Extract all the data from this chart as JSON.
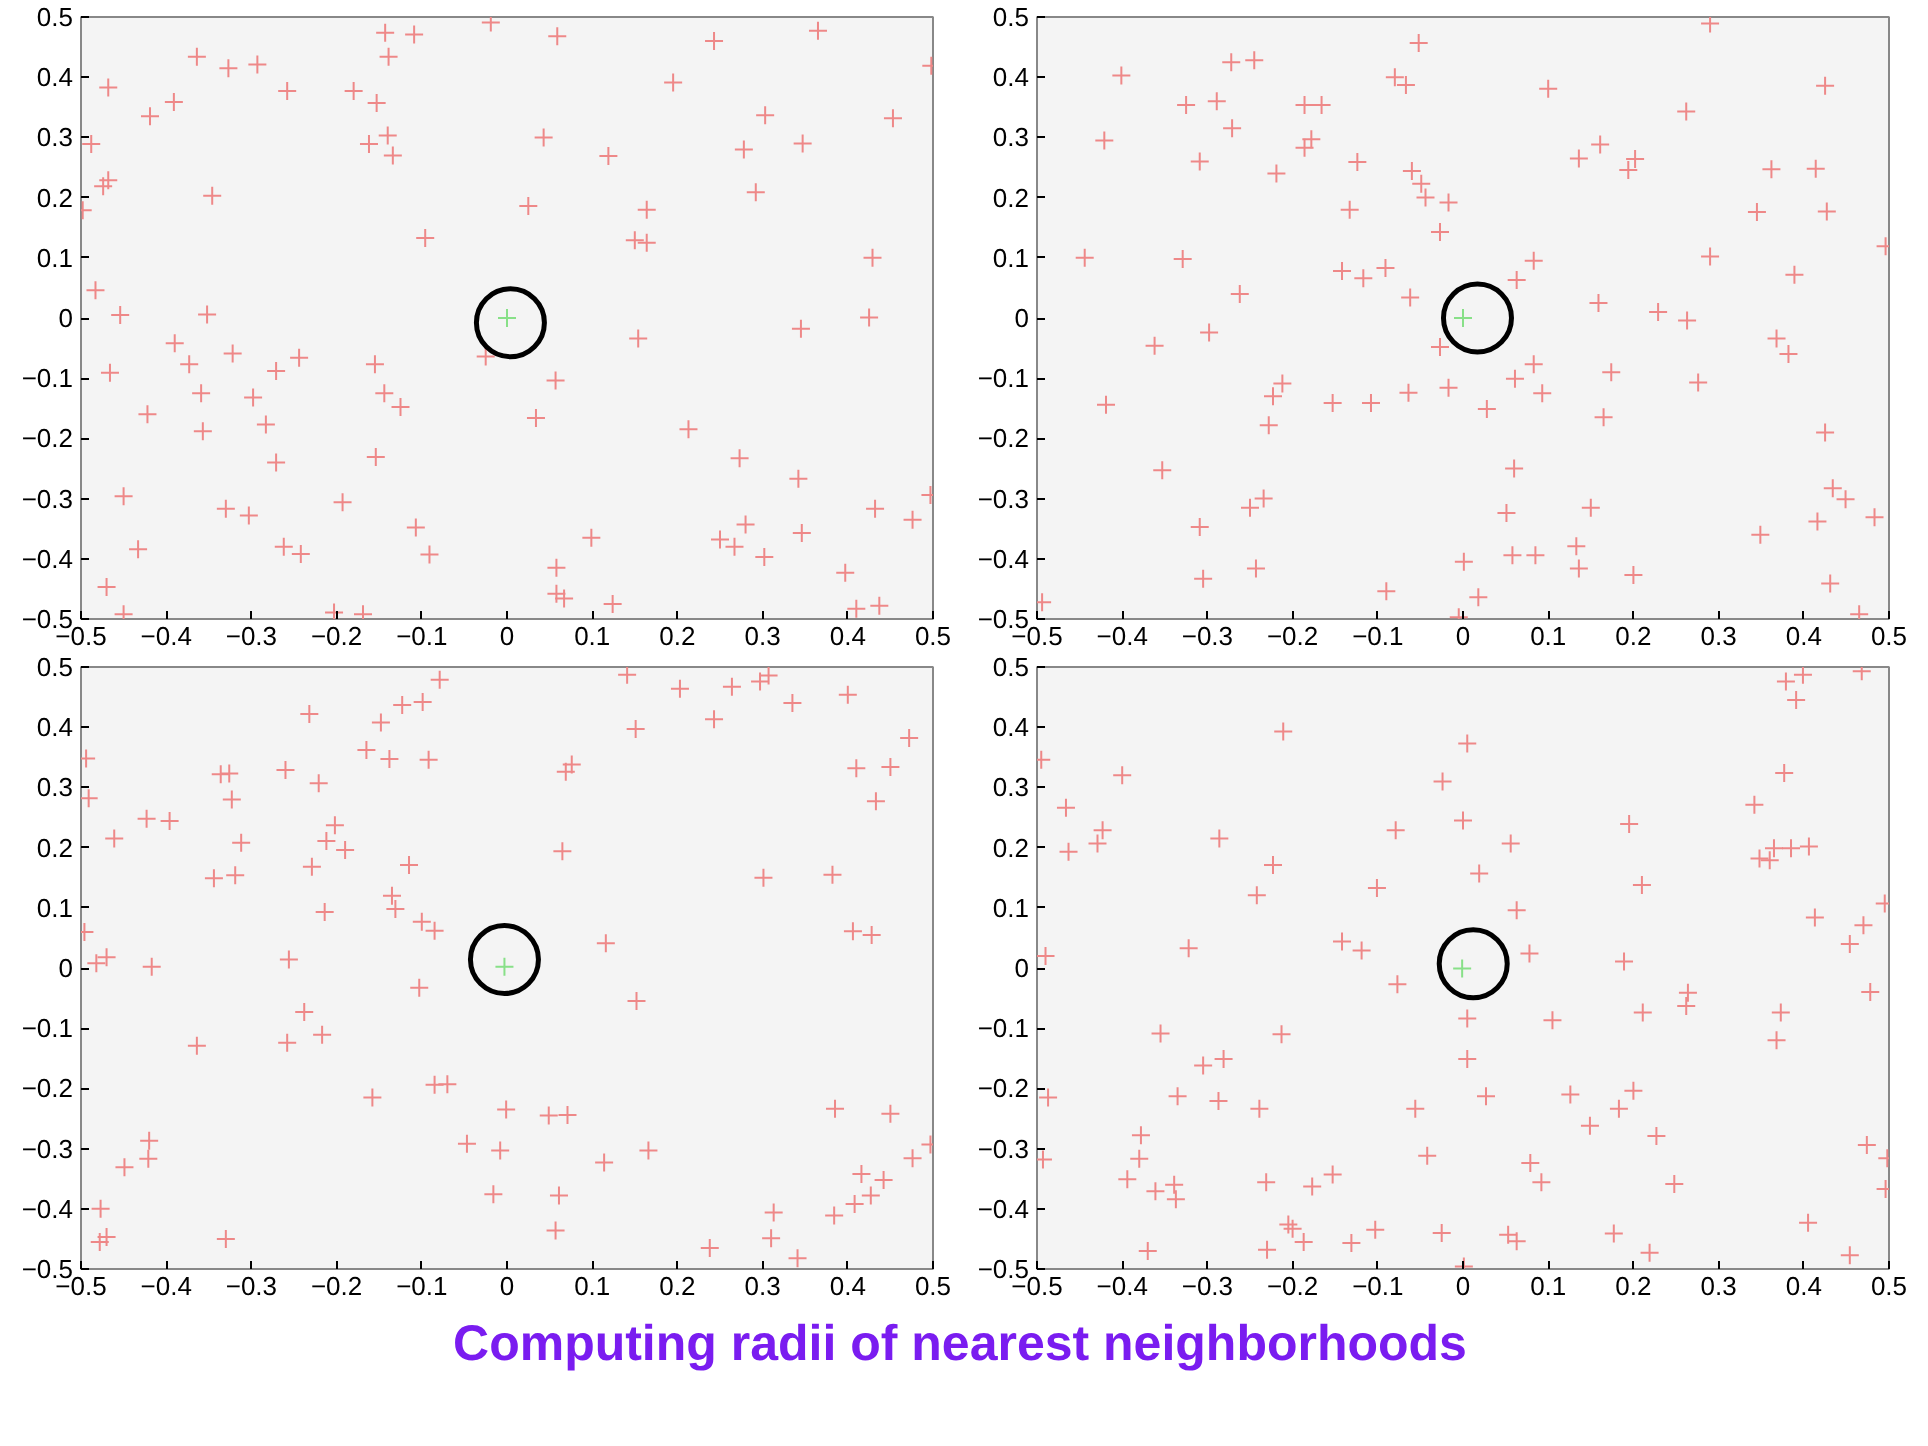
{
  "chart_data": [
    {
      "type": "scatter",
      "xlim": [
        -0.5,
        0.5
      ],
      "ylim": [
        -0.5,
        0.5
      ],
      "xticks": [
        -0.5,
        -0.4,
        -0.3,
        -0.2,
        -0.1,
        0,
        0.1,
        0.2,
        0.3,
        0.4,
        0.5
      ],
      "yticks": [
        -0.5,
        -0.4,
        -0.3,
        -0.2,
        -0.1,
        0,
        0.1,
        0.2,
        0.3,
        0.4,
        0.5
      ],
      "grid": false,
      "series": [
        {
          "color": "#ee8888",
          "marker": "cross",
          "x": [
            -0.143,
            -0.109,
            -0.019,
            0.059,
            0.243,
            0.365,
            -0.364,
            -0.327,
            -0.293,
            -0.139,
            0.498,
            -0.468,
            -0.258,
            -0.18,
            -0.153,
            0.195,
            -0.391,
            -0.419,
            0.303,
            0.453,
            -0.488,
            -0.162,
            -0.14,
            -0.134,
            0.043,
            0.119,
            0.278,
            0.347,
            -0.474,
            -0.468,
            -0.346,
            0.292,
            -0.498,
            0.025,
            0.164,
            -0.096,
            0.15,
            0.164,
            0.429,
            -0.483,
            -0.454,
            -0.352,
            0.425,
            0.345,
            0.154,
            -0.39,
            -0.322,
            -0.244,
            -0.373,
            -0.466,
            -0.271,
            -0.155,
            -0.025,
            0.057,
            -0.359,
            -0.298,
            -0.144,
            -0.125,
            0.034,
            -0.422,
            -0.283,
            -0.357,
            0.213,
            -0.271,
            -0.154,
            0.273,
            0.342,
            -0.45,
            -0.33,
            -0.303,
            -0.193,
            0.432,
            0.497,
            0.476,
            -0.107,
            0.099,
            0.25,
            0.267,
            0.28,
            0.346,
            -0.433,
            -0.262,
            -0.242,
            -0.091,
            0.302,
            0.058,
            0.397,
            -0.47,
            0.058,
            0.067,
            0.124,
            0.41,
            0.437,
            -0.45,
            -0.203,
            -0.169
          ],
          "values": [
            0.474,
            0.471,
            0.491,
            0.468,
            0.46,
            0.477,
            0.434,
            0.415,
            0.421,
            0.434,
            0.419,
            0.383,
            0.377,
            0.377,
            0.357,
            0.391,
            0.359,
            0.335,
            0.337,
            0.332,
            0.289,
            0.289,
            0.303,
            0.27,
            0.3,
            0.269,
            0.28,
            0.29,
            0.219,
            0.229,
            0.203,
            0.209,
            0.179,
            0.186,
            0.18,
            0.133,
            0.129,
            0.125,
            0.1,
            0.046,
            0.005,
            0.006,
            0.001,
            -0.018,
            -0.034,
            -0.042,
            -0.059,
            -0.066,
            -0.077,
            -0.091,
            -0.088,
            -0.077,
            -0.064,
            -0.104,
            -0.125,
            -0.132,
            -0.125,
            -0.148,
            -0.166,
            -0.16,
            -0.177,
            -0.188,
            -0.185,
            -0.24,
            -0.231,
            -0.233,
            -0.267,
            -0.296,
            -0.317,
            -0.328,
            -0.306,
            -0.317,
            -0.294,
            -0.335,
            -0.348,
            -0.365,
            -0.368,
            -0.38,
            -0.343,
            -0.357,
            -0.384,
            -0.38,
            -0.392,
            -0.393,
            -0.397,
            -0.415,
            -0.423,
            -0.447,
            -0.458,
            -0.466,
            -0.475,
            -0.483,
            -0.478,
            -0.492,
            -0.489,
            -0.492
          ]
        },
        {
          "color": "#88e088",
          "marker": "cross",
          "x": [
            0
          ],
          "values": [
            0
          ]
        },
        {
          "color": "#000000",
          "marker": "circle",
          "x": [
            0.004
          ],
          "values": [
            -0.008
          ]
        }
      ]
    },
    {
      "type": "scatter",
      "xlim": [
        -0.5,
        0.5
      ],
      "ylim": [
        -0.5,
        0.5
      ],
      "xticks": [
        -0.5,
        -0.4,
        -0.3,
        -0.2,
        -0.1,
        0,
        0.1,
        0.2,
        0.3,
        0.4,
        0.5
      ],
      "yticks": [
        -0.5,
        -0.4,
        -0.3,
        -0.2,
        -0.1,
        0,
        0.1,
        0.2,
        0.3,
        0.4,
        0.5
      ],
      "grid": false,
      "series": [
        {
          "color": "#ee8888",
          "marker": "cross",
          "x": [
            0.29,
            -0.052,
            -0.272,
            -0.245,
            -0.401,
            -0.08,
            -0.067,
            0.1,
            0.425,
            -0.325,
            -0.289,
            -0.186,
            -0.166,
            0.262,
            -0.421,
            -0.271,
            -0.178,
            -0.186,
            -0.309,
            -0.124,
            -0.219,
            -0.06,
            -0.049,
            -0.044,
            -0.017,
            0.136,
            0.161,
            0.202,
            0.194,
            0.362,
            0.414,
            -0.133,
            0.345,
            0.427,
            -0.027,
            -0.444,
            -0.329,
            0.083,
            0.29,
            0.496,
            -0.142,
            -0.091,
            -0.117,
            0.063,
            0.389,
            -0.262,
            -0.062,
            0.159,
            0.229,
            0.263,
            -0.298,
            -0.362,
            -0.027,
            0.368,
            0.382,
            0.083,
            0.061,
            0.174,
            0.276,
            -0.212,
            -0.223,
            -0.153,
            -0.108,
            -0.064,
            -0.017,
            0.093,
            -0.419,
            0.028,
            -0.228,
            0.165,
            0.425,
            -0.353,
            0.06,
            -0.234,
            -0.25,
            0.434,
            0.449,
            0.483,
            0.051,
            0.15,
            -0.309,
            0.349,
            0.416,
            0.058,
            0.085,
            0.133,
            0.136,
            -0.243,
            0.001,
            0.2,
            -0.305,
            -0.09,
            0.018,
            0.431,
            -0.494,
            -0.005,
            0.465
          ],
          "values": [
            0.489,
            0.457,
            0.425,
            0.428,
            0.403,
            0.4,
            0.387,
            0.381,
            0.386,
            0.354,
            0.36,
            0.354,
            0.354,
            0.343,
            0.295,
            0.315,
            0.297,
            0.283,
            0.26,
            0.259,
            0.24,
            0.244,
            0.223,
            0.2,
            0.192,
            0.265,
            0.288,
            0.264,
            0.246,
            0.247,
            0.248,
            0.18,
            0.176,
            0.177,
            0.143,
            0.1,
            0.098,
            0.095,
            0.102,
            0.119,
            0.078,
            0.083,
            0.066,
            0.063,
            0.072,
            0.04,
            0.034,
            0.025,
            0.01,
            -0.004,
            -0.024,
            -0.046,
            -0.048,
            -0.034,
            -0.06,
            -0.077,
            -0.101,
            -0.09,
            -0.107,
            -0.109,
            -0.13,
            -0.141,
            -0.141,
            -0.124,
            -0.116,
            -0.125,
            -0.144,
            -0.151,
            -0.178,
            -0.165,
            -0.19,
            -0.253,
            -0.25,
            -0.3,
            -0.315,
            -0.283,
            -0.301,
            -0.331,
            -0.324,
            -0.315,
            -0.347,
            -0.36,
            -0.338,
            -0.394,
            -0.394,
            -0.379,
            -0.416,
            -0.416,
            -0.405,
            -0.427,
            -0.433,
            -0.454,
            -0.464,
            -0.441,
            -0.472,
            -0.497,
            -0.492
          ]
        },
        {
          "color": "#88e088",
          "marker": "cross",
          "x": [
            0
          ],
          "values": [
            0
          ]
        },
        {
          "color": "#000000",
          "marker": "circle",
          "x": [
            0.017
          ],
          "values": [
            0
          ]
        }
      ]
    },
    {
      "type": "scatter",
      "xlim": [
        -0.5,
        0.5
      ],
      "ylim": [
        -0.5,
        0.5
      ],
      "xticks": [
        -0.5,
        -0.4,
        -0.3,
        -0.2,
        -0.1,
        0,
        0.1,
        0.2,
        0.3,
        0.4,
        0.5
      ],
      "yticks": [
        -0.5,
        -0.4,
        -0.3,
        -0.2,
        -0.1,
        0,
        0.1,
        0.2,
        0.3,
        0.4,
        0.5
      ],
      "grid": false,
      "series": [
        {
          "color": "#ee8888",
          "marker": "cross",
          "x": [
            -0.079,
            0.141,
            0.203,
            0.264,
            0.297,
            0.307,
            -0.232,
            -0.123,
            -0.099,
            -0.148,
            0.151,
            0.243,
            0.335,
            0.4,
            0.472,
            -0.494,
            -0.491,
            -0.336,
            -0.326,
            -0.26,
            -0.221,
            -0.165,
            -0.138,
            -0.092,
            0.069,
            0.076,
            0.41,
            0.45,
            0.433,
            -0.323,
            -0.423,
            -0.396,
            -0.461,
            -0.312,
            -0.202,
            -0.212,
            -0.19,
            -0.229,
            -0.344,
            -0.319,
            -0.115,
            0.065,
            0.301,
            0.382,
            -0.135,
            -0.131,
            -0.214,
            -0.1,
            -0.085,
            -0.496,
            -0.482,
            -0.47,
            -0.417,
            -0.256,
            -0.103,
            0.116,
            0.406,
            0.428,
            0.152,
            -0.238,
            -0.217,
            -0.258,
            -0.364,
            -0.085,
            -0.07,
            -0.158,
            -0.001,
            0.049,
            0.071,
            0.385,
            0.45,
            -0.42,
            -0.421,
            -0.449,
            -0.047,
            -0.008,
            0.114,
            0.166,
            0.497,
            0.476,
            0.416,
            0.442,
            -0.016,
            0.061,
            0.427,
            0.408,
            0.384,
            0.313,
            -0.477,
            -0.47,
            -0.478,
            -0.33,
            0.057,
            0.31,
            0.238,
            0.341
          ],
          "values": [
            0.479,
            0.487,
            0.464,
            0.467,
            0.476,
            0.486,
            0.422,
            0.437,
            0.442,
            0.408,
            0.397,
            0.413,
            0.44,
            0.454,
            0.382,
            0.348,
            0.282,
            0.322,
            0.323,
            0.329,
            0.307,
            0.362,
            0.347,
            0.346,
            0.326,
            0.338,
            0.332,
            0.334,
            0.277,
            0.28,
            0.248,
            0.244,
            0.215,
            0.208,
            0.237,
            0.211,
            0.196,
            0.168,
            0.149,
            0.154,
            0.171,
            0.194,
            0.15,
            0.155,
            0.12,
            0.098,
            0.093,
            0.077,
            0.062,
            0.06,
            0.008,
            0.018,
            0.002,
            0.014,
            -0.033,
            0.041,
            0.061,
            0.055,
            -0.055,
            -0.073,
            -0.111,
            -0.124,
            -0.129,
            -0.194,
            -0.193,
            -0.215,
            -0.235,
            -0.245,
            -0.244,
            -0.234,
            -0.242,
            -0.287,
            -0.317,
            -0.331,
            -0.292,
            -0.303,
            -0.323,
            -0.303,
            -0.293,
            -0.316,
            -0.342,
            -0.352,
            -0.376,
            -0.378,
            -0.378,
            -0.392,
            -0.411,
            -0.406,
            -0.4,
            -0.447,
            -0.455,
            -0.45,
            -0.436,
            -0.449,
            -0.465,
            -0.482
          ]
        },
        {
          "color": "#88e088",
          "marker": "cross",
          "x": [
            -0.003
          ],
          "values": [
            0.002
          ]
        },
        {
          "color": "#000000",
          "marker": "circle",
          "x": [
            -0.003
          ],
          "values": [
            0.014
          ]
        }
      ]
    },
    {
      "type": "scatter",
      "xlim": [
        -0.5,
        0.5
      ],
      "ylim": [
        -0.5,
        0.5
      ],
      "xticks": [
        -0.5,
        -0.4,
        -0.3,
        -0.2,
        -0.1,
        0,
        0.1,
        0.2,
        0.3,
        0.4,
        0.5
      ],
      "yticks": [
        -0.5,
        -0.4,
        -0.3,
        -0.2,
        -0.1,
        0,
        0.1,
        0.2,
        0.3,
        0.4,
        0.5
      ],
      "grid": false,
      "annotations": [
        "Computing radii of nearest neighborhoods"
      ],
      "series": [
        {
          "color": "#ee8888",
          "marker": "cross",
          "x": [
            0.468,
            0.379,
            0.399,
            0.391,
            -0.211,
            0.005,
            -0.495,
            -0.4,
            -0.024,
            0.377,
            -0.466,
            -0.423,
            -0.429,
            -0.463,
            -0.286,
            -0.079,
            0.0,
            0.056,
            0.195,
            0.342,
            0.365,
            0.385,
            0.406,
            0.348,
            0.36,
            -0.223,
            0.019,
            -0.242,
            -0.101,
            0.21,
            0.063,
            0.413,
            0.495,
            0.47,
            0.454,
            -0.322,
            -0.142,
            -0.119,
            -0.49,
            0.078,
            0.189,
            -0.077,
            0.264,
            0.262,
            0.478,
            0.373,
            0.368,
            0.211,
            0.005,
            0.105,
            -0.355,
            -0.213,
            -0.281,
            -0.305,
            0.005,
            -0.487,
            -0.335,
            -0.287,
            -0.239,
            -0.056,
            0.027,
            0.126,
            0.2,
            0.183,
            0.149,
            0.227,
            -0.378,
            -0.38,
            -0.493,
            -0.394,
            -0.361,
            -0.339,
            -0.337,
            -0.231,
            -0.177,
            -0.153,
            -0.042,
            0.079,
            0.092,
            0.248,
            0.474,
            0.498,
            0.496,
            0.405,
            -0.205,
            -0.2,
            -0.187,
            -0.131,
            -0.103,
            -0.025,
            0.053,
            0.063,
            0.177,
            0.219,
            -0.37,
            -0.23,
            0.001,
            0.454
          ],
          "values": [
            0.493,
            0.476,
            0.487,
            0.445,
            0.393,
            0.373,
            0.346,
            0.32,
            0.31,
            0.324,
            0.266,
            0.229,
            0.207,
            0.193,
            0.215,
            0.229,
            0.245,
            0.207,
            0.239,
            0.271,
            0.199,
            0.199,
            0.202,
            0.182,
            0.179,
            0.171,
            0.157,
            0.121,
            0.133,
            0.138,
            0.096,
            0.084,
            0.107,
            0.071,
            0.04,
            0.033,
            0.044,
            0.029,
            0.02,
            0.024,
            0.011,
            -0.027,
            -0.041,
            -0.063,
            -0.04,
            -0.074,
            -0.12,
            -0.074,
            -0.084,
            -0.087,
            -0.109,
            -0.11,
            -0.151,
            -0.162,
            -0.151,
            -0.215,
            -0.213,
            -0.221,
            -0.234,
            -0.234,
            -0.213,
            -0.21,
            -0.204,
            -0.234,
            -0.262,
            -0.279,
            -0.278,
            -0.317,
            -0.318,
            -0.351,
            -0.371,
            -0.36,
            -0.384,
            -0.356,
            -0.363,
            -0.343,
            -0.312,
            -0.324,
            -0.356,
            -0.359,
            -0.294,
            -0.316,
            -0.367,
            -0.423,
            -0.426,
            -0.433,
            -0.455,
            -0.457,
            -0.435,
            -0.44,
            -0.443,
            -0.454,
            -0.441,
            -0.473,
            -0.47,
            -0.468,
            -0.496,
            -0.477
          ]
        },
        {
          "color": "#88e088",
          "marker": "cross",
          "x": [
            -0.001
          ],
          "values": [
            -0.001
          ]
        },
        {
          "color": "#000000",
          "marker": "circle",
          "x": [
            0.012
          ],
          "values": [
            0.007
          ]
        }
      ]
    }
  ]
}
